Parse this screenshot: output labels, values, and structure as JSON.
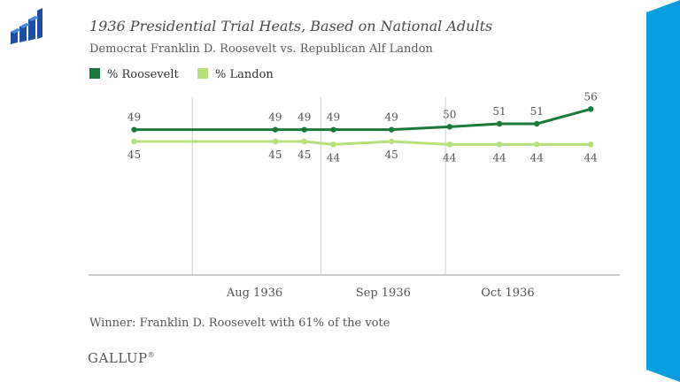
{
  "header": {
    "title": "1936 Presidential Trial Heats, Based on National Adults",
    "subtitle": "Democrat Franklin D. Roosevelt  vs. Republican Alf Landon"
  },
  "legend": {
    "items": [
      {
        "label": "% Roosevelt",
        "color": "#1a7a3a"
      },
      {
        "label": "% Landon",
        "color": "#b5e07a"
      }
    ]
  },
  "footer": {
    "winner": "Winner: Franklin D. Roosevelt with 61% of the vote",
    "brand": "GALLUP"
  },
  "colors": {
    "roosevelt": "#1a7a3a",
    "landon": "#b5e07a",
    "accent_band": "#0a9ee0",
    "logo": "#1a4fa3"
  },
  "icons": {
    "logo": "bar-chart-logo-icon"
  },
  "chart_data": {
    "type": "line",
    "x_ticks": [
      "Aug 1936",
      "Sep 1936",
      "Oct 1936"
    ],
    "ylim": [
      0,
      60
    ],
    "grid": "vertical month dividers",
    "series": [
      {
        "name": "% Roosevelt",
        "color": "#1a7a3a",
        "points": [
          {
            "date": "1936-07-18",
            "value": 49
          },
          {
            "date": "1936-08-21",
            "value": 49
          },
          {
            "date": "1936-08-28",
            "value": 49
          },
          {
            "date": "1936-09-04",
            "value": 49
          },
          {
            "date": "1936-09-18",
            "value": 49
          },
          {
            "date": "1936-10-02",
            "value": 50
          },
          {
            "date": "1936-10-14",
            "value": 51
          },
          {
            "date": "1936-10-23",
            "value": 51
          },
          {
            "date": "1936-11-05",
            "value": 56
          }
        ]
      },
      {
        "name": "% Landon",
        "color": "#b5e07a",
        "points": [
          {
            "date": "1936-07-18",
            "value": 45
          },
          {
            "date": "1936-08-21",
            "value": 45
          },
          {
            "date": "1936-08-28",
            "value": 45
          },
          {
            "date": "1936-09-04",
            "value": 44
          },
          {
            "date": "1936-09-18",
            "value": 45
          },
          {
            "date": "1936-10-02",
            "value": 44
          },
          {
            "date": "1936-10-14",
            "value": 44
          },
          {
            "date": "1936-10-23",
            "value": 44
          },
          {
            "date": "1936-11-05",
            "value": 44
          }
        ]
      }
    ]
  }
}
